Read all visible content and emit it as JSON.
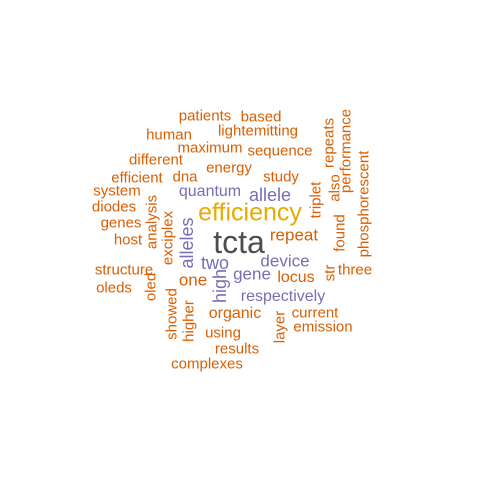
{
  "colors": {
    "orange": "#d95f02",
    "purple": "#7570b3",
    "gold": "#e6ab02",
    "gray": "#4d4d4d"
  },
  "words": {
    "tcta": "tcta",
    "efficiency": "efficiency",
    "allele": "allele",
    "alleles": "alleles",
    "quantum": "quantum",
    "device": "device",
    "gene": "gene",
    "two": "two",
    "high": "high",
    "respectively": "respectively",
    "patients": "patients",
    "based": "based",
    "human": "human",
    "lightemitting": "lightemitting",
    "maximum": "maximum",
    "sequence": "sequence",
    "different": "different",
    "energy": "energy",
    "study": "study",
    "efficient": "efficient",
    "dna": "dna",
    "system": "system",
    "diodes": "diodes",
    "genes": "genes",
    "host": "host",
    "analysis": "analysis",
    "exciplex": "exciplex",
    "repeat": "repeat",
    "repeats": "repeats",
    "performance": "performance",
    "also": "also",
    "triplet": "triplet",
    "phosphorescent": "phosphorescent",
    "found": "found",
    "three": "three",
    "str": "str",
    "locus": "locus",
    "one": "one",
    "structure": "structure",
    "oleds": "oleds",
    "oled": "oled",
    "showed": "showed",
    "higher": "higher",
    "organic": "organic",
    "current": "current",
    "layer": "layer",
    "emission": "emission",
    "using": "using",
    "results": "results",
    "complexes": "complexes"
  }
}
